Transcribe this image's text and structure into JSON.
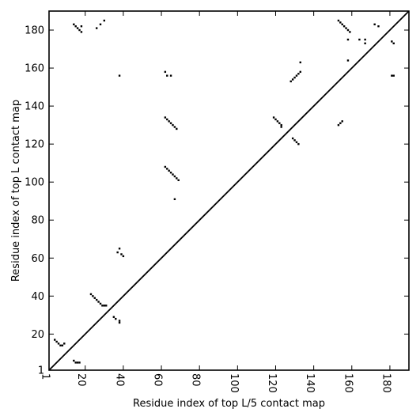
{
  "chart_data": {
    "type": "scatter",
    "title": "",
    "xlabel": "Residue index of top L/5 contact map",
    "ylabel": "Residue index of top L contact map",
    "xlim": [
      1,
      190
    ],
    "ylim": [
      1,
      190
    ],
    "xticks": [
      1,
      20,
      40,
      60,
      80,
      100,
      120,
      140,
      160,
      180
    ],
    "yticks": [
      1,
      20,
      40,
      60,
      80,
      100,
      120,
      140,
      160,
      180
    ],
    "grid": false,
    "legend": "none",
    "diagonal": true,
    "series": [
      {
        "points": [
          [
            153,
            185
          ],
          [
            154,
            184
          ],
          [
            155,
            183
          ],
          [
            156,
            182
          ],
          [
            157,
            181
          ],
          [
            158,
            180
          ],
          [
            159,
            179
          ],
          [
            172,
            183
          ],
          [
            174,
            182
          ],
          [
            164,
            175
          ],
          [
            167,
            175
          ],
          [
            167,
            173
          ],
          [
            158,
            175
          ],
          [
            158,
            164
          ],
          [
            181,
            174
          ],
          [
            182,
            173
          ],
          [
            181,
            156
          ],
          [
            182,
            156
          ],
          [
            133,
            163
          ],
          [
            133,
            158
          ],
          [
            132,
            157
          ],
          [
            131,
            156
          ],
          [
            130,
            155
          ],
          [
            129,
            154
          ],
          [
            128,
            153
          ],
          [
            119,
            134
          ],
          [
            120,
            133
          ],
          [
            121,
            132
          ],
          [
            122,
            131
          ],
          [
            123,
            130
          ],
          [
            123,
            129
          ],
          [
            129,
            123
          ],
          [
            130,
            122
          ],
          [
            131,
            121
          ],
          [
            132,
            120
          ],
          [
            153,
            130
          ],
          [
            154,
            131
          ],
          [
            155,
            132
          ],
          [
            62,
            158
          ],
          [
            63,
            156
          ],
          [
            65,
            156
          ],
          [
            62,
            134
          ],
          [
            63,
            133
          ],
          [
            64,
            132
          ],
          [
            65,
            131
          ],
          [
            66,
            130
          ],
          [
            67,
            129
          ],
          [
            68,
            128
          ],
          [
            62,
            108
          ],
          [
            63,
            107
          ],
          [
            64,
            106
          ],
          [
            65,
            105
          ],
          [
            66,
            104
          ],
          [
            67,
            103
          ],
          [
            68,
            102
          ],
          [
            69,
            101
          ],
          [
            67,
            91
          ],
          [
            38,
            156
          ],
          [
            14,
            183
          ],
          [
            15,
            182
          ],
          [
            16,
            181
          ],
          [
            17,
            180
          ],
          [
            18,
            179
          ],
          [
            18,
            182
          ],
          [
            26,
            181
          ],
          [
            28,
            183
          ],
          [
            30,
            185
          ],
          [
            37,
            63
          ],
          [
            38,
            65
          ],
          [
            39,
            62
          ],
          [
            40,
            61
          ],
          [
            23,
            41
          ],
          [
            24,
            40
          ],
          [
            25,
            39
          ],
          [
            26,
            38
          ],
          [
            27,
            37
          ],
          [
            28,
            36
          ],
          [
            29,
            35
          ],
          [
            30,
            35
          ],
          [
            31,
            35
          ],
          [
            35,
            29
          ],
          [
            36,
            28
          ],
          [
            38,
            27
          ],
          [
            38,
            26
          ],
          [
            4,
            17
          ],
          [
            5,
            16
          ],
          [
            6,
            15
          ],
          [
            7,
            14
          ],
          [
            8,
            14
          ],
          [
            9,
            15
          ],
          [
            14,
            6
          ],
          [
            15,
            5
          ],
          [
            16,
            5
          ],
          [
            17,
            5
          ]
        ]
      }
    ]
  }
}
